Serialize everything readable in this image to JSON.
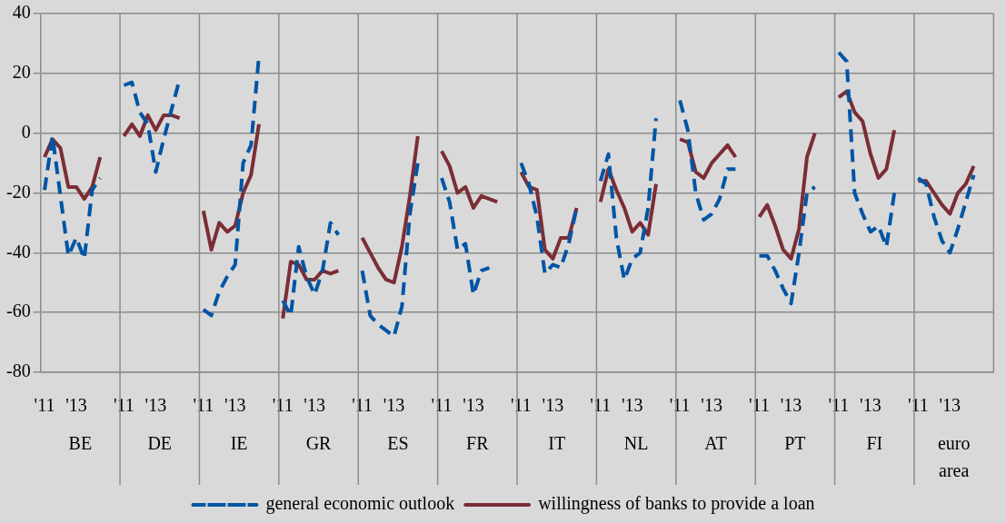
{
  "chart_data": {
    "type": "line",
    "categories": [
      "'11",
      null,
      null,
      null,
      "'13",
      null,
      null,
      null,
      null,
      null,
      "'11",
      null,
      null,
      null,
      "'13",
      null,
      null,
      null,
      null,
      null,
      "'11",
      null,
      null,
      null,
      "'13",
      null,
      null,
      null,
      null,
      null,
      "'11",
      null,
      null,
      null,
      "'13",
      null,
      null,
      null,
      null,
      null,
      "'11",
      null,
      null,
      null,
      "'13",
      null,
      null,
      null,
      null,
      null,
      "'11",
      null,
      null,
      null,
      "'13",
      null,
      null,
      null,
      null,
      null,
      "'11",
      null,
      null,
      null,
      "'13",
      null,
      null,
      null,
      null,
      null,
      "'11",
      null,
      null,
      null,
      "'13",
      null,
      null,
      null,
      null,
      null,
      "'11",
      null,
      null,
      null,
      "'13",
      null,
      null,
      null,
      null,
      null,
      "'11",
      null,
      null,
      null,
      "'13",
      null,
      null,
      null,
      null,
      null,
      "'11",
      null,
      null,
      null,
      "'13",
      null,
      null,
      null,
      null,
      null,
      "'11",
      null,
      null,
      null,
      "'13",
      null,
      null,
      null,
      null,
      null
    ],
    "annotations": [
      "BE",
      "DE",
      "IE",
      "GR",
      "ES",
      "FR",
      "IT",
      "NL",
      "AT",
      "PT",
      "FI",
      "euro area"
    ],
    "series": [
      {
        "name": "general economic outlook",
        "color": "#0055a5",
        "line_style": "dashed",
        "values": [
          -19,
          -1,
          -21,
          -41,
          -35,
          -42,
          -19,
          -15,
          null,
          null,
          16,
          17,
          7,
          3,
          -13,
          -2,
          8,
          18,
          null,
          null,
          -59,
          -61,
          -53,
          -48,
          -44,
          -10,
          -4,
          26,
          null,
          null,
          -56,
          -61,
          -38,
          -48,
          -54,
          -46,
          -30,
          -34,
          null,
          null,
          -46,
          -61,
          -64,
          -66,
          -68,
          -58,
          -27,
          -10,
          null,
          null,
          -15,
          -23,
          -39,
          -37,
          -54,
          -46,
          -45,
          null,
          null,
          null,
          -10,
          -17,
          -28,
          -47,
          -44,
          -45,
          -37,
          -25,
          null,
          null,
          -16,
          -7,
          -35,
          -49,
          -42,
          -40,
          -25,
          5,
          null,
          null,
          11,
          1,
          -20,
          -29,
          -27,
          -22,
          -12,
          -12,
          null,
          null,
          -41,
          -41,
          -46,
          -52,
          -57,
          -40,
          -20,
          -18,
          null,
          null,
          27,
          24,
          -20,
          -27,
          -33,
          -31,
          -38,
          -20,
          null,
          null,
          -15,
          -17,
          -28,
          -36,
          -40,
          -32,
          -23,
          -14,
          null,
          null
        ]
      },
      {
        "name": "willingness of banks to provide a loan",
        "color": "#7b2d35",
        "line_style": "solid",
        "values": [
          -8,
          -2,
          -5,
          -18,
          -18,
          -22,
          -18,
          -8,
          null,
          null,
          -1,
          3,
          -1,
          6,
          1,
          6,
          6,
          5,
          null,
          null,
          -26,
          -39,
          -30,
          -33,
          -31,
          -20,
          -14,
          3,
          null,
          null,
          -62,
          -43,
          -44,
          -49,
          -49,
          -46,
          -47,
          -46,
          null,
          null,
          -35,
          -40,
          -45,
          -49,
          -50,
          -38,
          -21,
          -1,
          null,
          null,
          -6,
          -11,
          -20,
          -18,
          -25,
          -21,
          -22,
          -23,
          null,
          null,
          -13,
          -18,
          -19,
          -39,
          -42,
          -35,
          -35,
          -25,
          null,
          null,
          -23,
          -12,
          -19,
          -25,
          -33,
          -30,
          -34,
          -17,
          null,
          null,
          -2,
          -3,
          -13,
          -15,
          -10,
          -7,
          -4,
          -8,
          null,
          null,
          -28,
          -24,
          -31,
          -39,
          -42,
          -32,
          -8,
          0,
          null,
          null,
          12,
          14,
          7,
          4,
          -7,
          -15,
          -12,
          1,
          null,
          null,
          -16,
          -16,
          -20,
          -24,
          -27,
          -20,
          -17,
          -11,
          null,
          null
        ]
      }
    ],
    "ylim": [
      -80,
      40
    ],
    "yticks": [
      -80,
      -60,
      -40,
      -20,
      0,
      20,
      40
    ],
    "grid": true,
    "legend": "bottom",
    "marker": "none"
  }
}
